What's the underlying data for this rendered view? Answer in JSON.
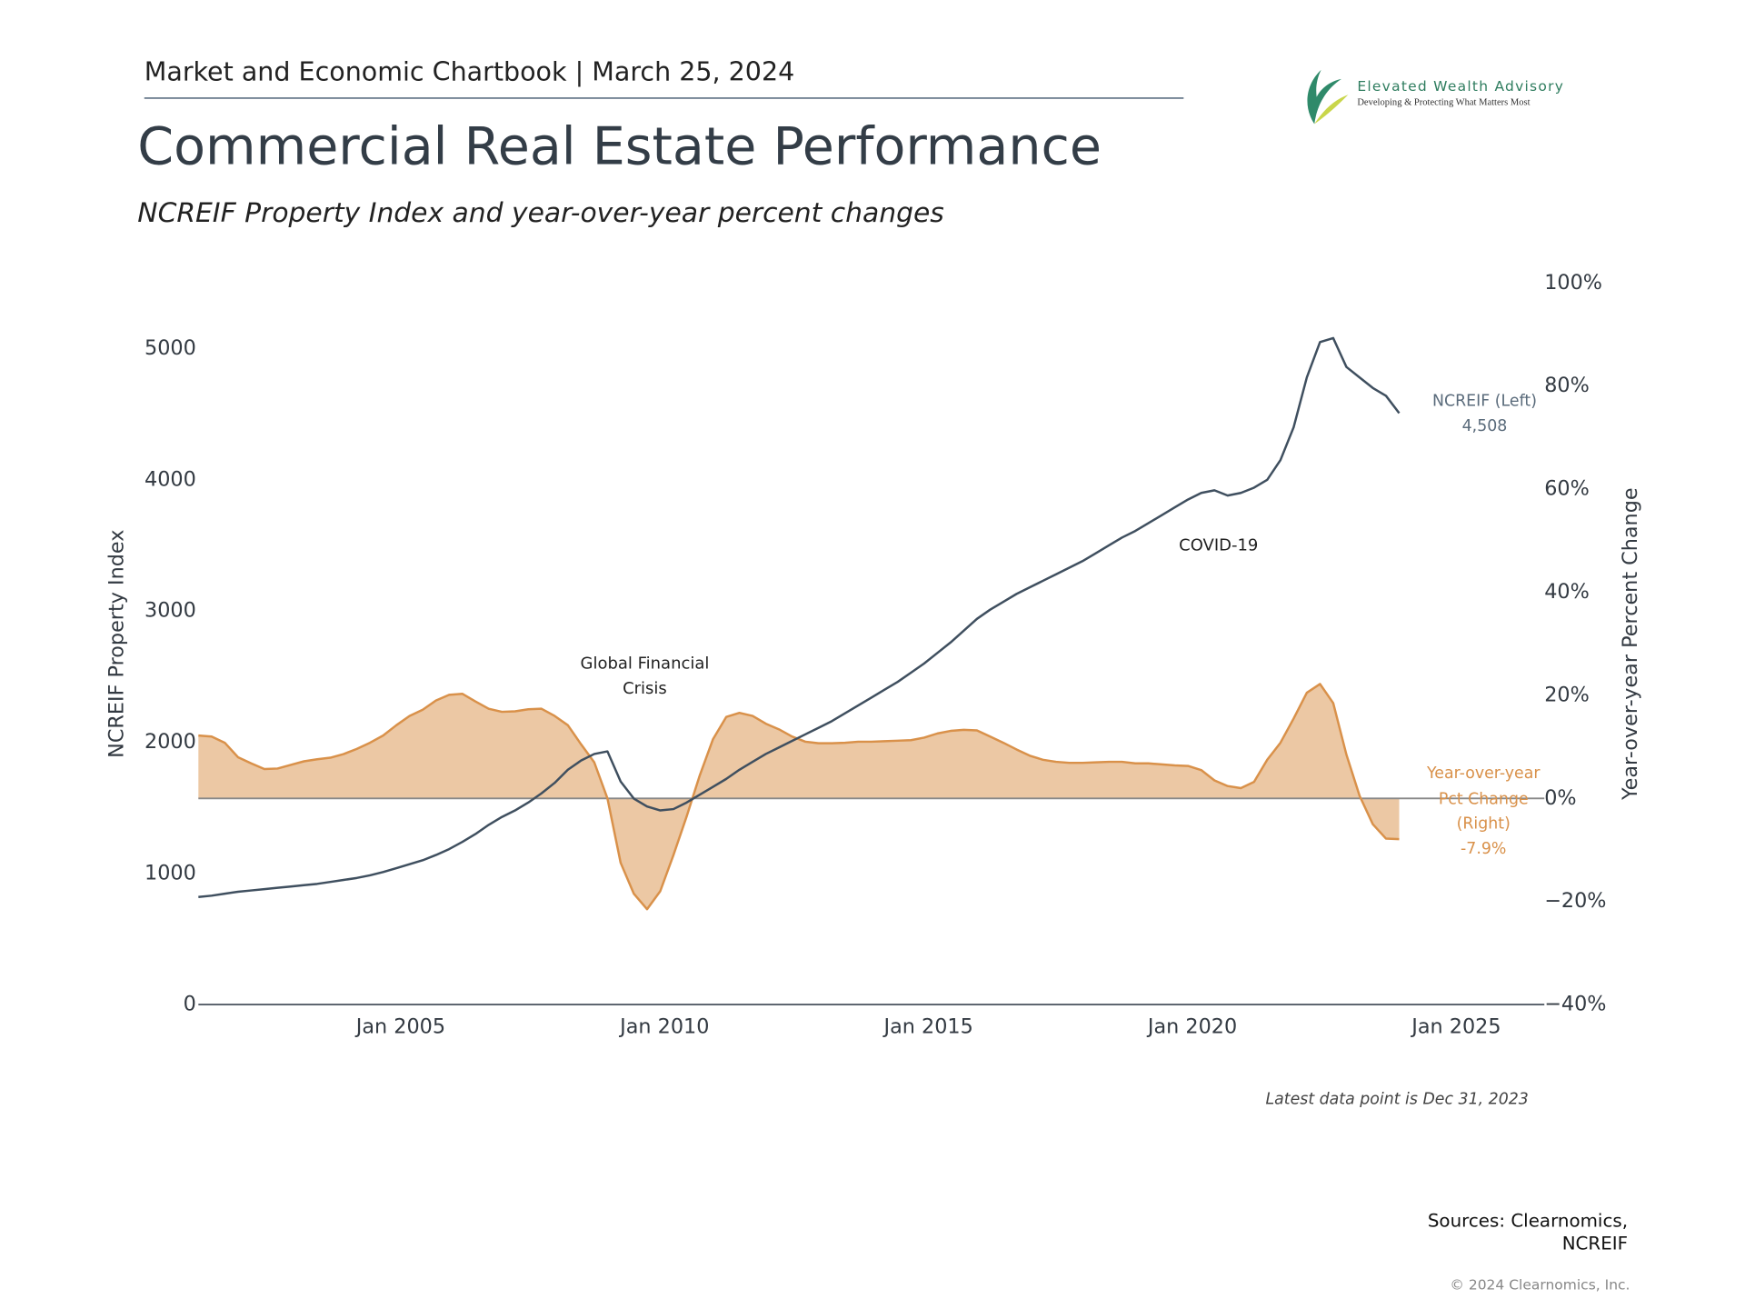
{
  "header": {
    "chartbook": "Market and Economic Chartbook | March 25, 2024",
    "logo_name": "Elevated Wealth Advisory",
    "logo_tagline": "Developing & Protecting What Matters Most"
  },
  "chart_data": {
    "type": "line-area",
    "title": "Commercial Real Estate Performance",
    "subtitle": "NCREIF Property Index and year-over-year percent changes",
    "y_label": "NCREIF Property Index",
    "y2_label": "Year-over-year Percent Change",
    "annotations": [
      "Global Financial Crisis",
      "COVID-19"
    ],
    "x": [
      "2001-03",
      "2001-06",
      "2001-09",
      "2001-12",
      "2002-03",
      "2002-06",
      "2002-09",
      "2002-12",
      "2003-03",
      "2003-06",
      "2003-09",
      "2003-12",
      "2004-03",
      "2004-06",
      "2004-09",
      "2004-12",
      "2005-03",
      "2005-06",
      "2005-09",
      "2005-12",
      "2006-03",
      "2006-06",
      "2006-09",
      "2006-12",
      "2007-03",
      "2007-06",
      "2007-09",
      "2007-12",
      "2008-03",
      "2008-06",
      "2008-09",
      "2008-12",
      "2009-03",
      "2009-06",
      "2009-09",
      "2009-12",
      "2010-03",
      "2010-06",
      "2010-09",
      "2010-12",
      "2011-03",
      "2011-06",
      "2011-09",
      "2011-12",
      "2012-03",
      "2012-06",
      "2012-09",
      "2012-12",
      "2013-03",
      "2013-06",
      "2013-09",
      "2013-12",
      "2014-03",
      "2014-06",
      "2014-09",
      "2014-12",
      "2015-03",
      "2015-06",
      "2015-09",
      "2015-12",
      "2016-03",
      "2016-06",
      "2016-09",
      "2016-12",
      "2017-03",
      "2017-06",
      "2017-09",
      "2017-12",
      "2018-03",
      "2018-06",
      "2018-09",
      "2018-12",
      "2019-03",
      "2019-06",
      "2019-09",
      "2019-12",
      "2020-03",
      "2020-06",
      "2020-09",
      "2020-12",
      "2021-03",
      "2021-06",
      "2021-09",
      "2021-12",
      "2022-03",
      "2022-06",
      "2022-09",
      "2022-12",
      "2023-03",
      "2023-06",
      "2023-09",
      "2023-12"
    ],
    "xlim": [
      "2001-03",
      "2026-09"
    ],
    "xticks": [
      {
        "value": "2005-01",
        "label": "Jan 2005"
      },
      {
        "value": "2010-01",
        "label": "Jan 2010"
      },
      {
        "value": "2015-01",
        "label": "Jan 2015"
      },
      {
        "value": "2020-01",
        "label": "Jan 2020"
      },
      {
        "value": "2025-01",
        "label": "Jan 2025"
      }
    ],
    "ylim": [
      0,
      5500
    ],
    "yticks": [
      0,
      1000,
      2000,
      3000,
      4000,
      5000
    ],
    "y2lim": [
      -40,
      100
    ],
    "y2ticks": [
      {
        "value": -40,
        "label": "−40%"
      },
      {
        "value": -20,
        "label": "−20%"
      },
      {
        "value": 0,
        "label": "0%"
      },
      {
        "value": 20,
        "label": "20%"
      },
      {
        "value": 40,
        "label": "40%"
      },
      {
        "value": 60,
        "label": "60%"
      },
      {
        "value": 80,
        "label": "80%"
      },
      {
        "value": 100,
        "label": "100%"
      }
    ],
    "grid": false,
    "series": [
      {
        "name": "NCREIF (Left)",
        "color": "#3f4f5f",
        "values": [
          820,
          830,
          845,
          860,
          870,
          880,
          890,
          900,
          910,
          920,
          935,
          950,
          965,
          985,
          1010,
          1040,
          1070,
          1100,
          1140,
          1185,
          1240,
          1300,
          1370,
          1430,
          1480,
          1540,
          1610,
          1690,
          1790,
          1860,
          1910,
          1930,
          1700,
          1570,
          1510,
          1480,
          1490,
          1540,
          1600,
          1660,
          1720,
          1790,
          1850,
          1910,
          1960,
          2010,
          2060,
          2110,
          2160,
          2220,
          2280,
          2340,
          2400,
          2460,
          2530,
          2600,
          2680,
          2760,
          2850,
          2940,
          3010,
          3070,
          3130,
          3180,
          3230,
          3280,
          3330,
          3380,
          3440,
          3500,
          3560,
          3610,
          3670,
          3730,
          3790,
          3850,
          3900,
          3920,
          3880,
          3900,
          3940,
          4000,
          4150,
          4400,
          4780,
          5050,
          5080,
          4860,
          4780,
          4700,
          4640,
          4508
        ],
        "value_labels": [
          null,
          null,
          null,
          null,
          null,
          null,
          null,
          null,
          null,
          null,
          null,
          null,
          null,
          null,
          null,
          null,
          null,
          null,
          null,
          null,
          null,
          null,
          null,
          null,
          null,
          null,
          null,
          null,
          null,
          null,
          null,
          null,
          null,
          null,
          null,
          null,
          null,
          null,
          null,
          null,
          null,
          null,
          null,
          null,
          null,
          null,
          null,
          null,
          null,
          null,
          null,
          null,
          null,
          null,
          null,
          null,
          null,
          null,
          null,
          null,
          null,
          null,
          null,
          null,
          null,
          null,
          null,
          null,
          null,
          null,
          null,
          null,
          null,
          null,
          null,
          null,
          null,
          null,
          null,
          null,
          null,
          null,
          null,
          null,
          null,
          null,
          null,
          null,
          null,
          null,
          null,
          "4,508"
        ]
      },
      {
        "name": "Year-over-year Pct Change (Right)",
        "color": "#d9914a",
        "axis": "y2",
        "values": [
          12.2,
          12.0,
          10.8,
          8.0,
          6.8,
          5.7,
          5.8,
          6.5,
          7.2,
          7.6,
          7.9,
          8.6,
          9.6,
          10.8,
          12.2,
          14.2,
          16.0,
          17.2,
          19.0,
          20.1,
          20.3,
          18.8,
          17.4,
          16.8,
          16.9,
          17.3,
          17.4,
          16.0,
          14.2,
          10.5,
          7.0,
          0,
          -12.5,
          -18.5,
          -21.5,
          -18,
          -11,
          -3.5,
          4.5,
          11.5,
          15.8,
          16.6,
          16.0,
          14.5,
          13.4,
          12.0,
          11.0,
          10.7,
          10.7,
          10.8,
          11.0,
          11.0,
          11.1,
          11.2,
          11.3,
          11.8,
          12.6,
          13.1,
          13.3,
          13.2,
          12.0,
          10.8,
          9.5,
          8.3,
          7.5,
          7.1,
          6.9,
          6.9,
          7.0,
          7.1,
          7.1,
          6.8,
          6.8,
          6.6,
          6.4,
          6.3,
          5.5,
          3.5,
          2.4,
          2.0,
          3.2,
          7.5,
          10.8,
          15.5,
          20.5,
          22.2,
          18.5,
          8.5,
          0.5,
          -5.0,
          -7.8,
          -7.9
        ],
        "value_labels": [
          null,
          null,
          null,
          null,
          null,
          null,
          null,
          null,
          null,
          null,
          null,
          null,
          null,
          null,
          null,
          null,
          null,
          null,
          null,
          null,
          null,
          null,
          null,
          null,
          null,
          null,
          null,
          null,
          null,
          null,
          null,
          null,
          null,
          null,
          null,
          null,
          null,
          null,
          null,
          null,
          null,
          null,
          null,
          null,
          null,
          null,
          null,
          null,
          null,
          null,
          null,
          null,
          null,
          null,
          null,
          null,
          null,
          null,
          null,
          null,
          null,
          null,
          null,
          null,
          null,
          null,
          null,
          null,
          null,
          null,
          null,
          null,
          null,
          null,
          null,
          null,
          null,
          null,
          null,
          null,
          null,
          null,
          null,
          null,
          null,
          null,
          null,
          null,
          null,
          null,
          null,
          "-7.9%"
        ]
      }
    ]
  },
  "footer": {
    "note": "Latest data point is Dec 31, 2023",
    "sources": "Sources: Clearnomics, NCREIF",
    "copyright": "© 2024 Clearnomics, Inc."
  }
}
